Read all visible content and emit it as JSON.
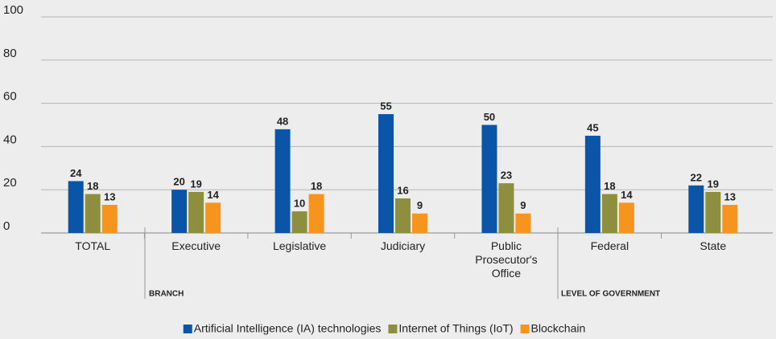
{
  "chart_data": {
    "type": "bar",
    "categories": [
      "TOTAL",
      "Executive",
      "Legislative",
      "Judiciary",
      "Public Prosecutor's Office",
      "Federal",
      "State"
    ],
    "series": [
      {
        "name": "Artificial Intelligence (IA) technologies",
        "color": "#0b55a9",
        "values": [
          24,
          20,
          48,
          55,
          50,
          45,
          22
        ]
      },
      {
        "name": "Internet of Things (IoT)",
        "color": "#8e8e3f",
        "values": [
          18,
          19,
          10,
          16,
          23,
          18,
          19
        ]
      },
      {
        "name": "Blockchain",
        "color": "#f7941d",
        "values": [
          13,
          14,
          18,
          9,
          9,
          14,
          13
        ]
      }
    ],
    "ylim": [
      0,
      100
    ],
    "yticks": [
      0,
      20,
      40,
      60,
      80,
      100
    ],
    "grid": true,
    "annotations": [
      "BRANCH",
      "LEVEL OF GOVERNMENT"
    ],
    "legend": "bottom"
  }
}
